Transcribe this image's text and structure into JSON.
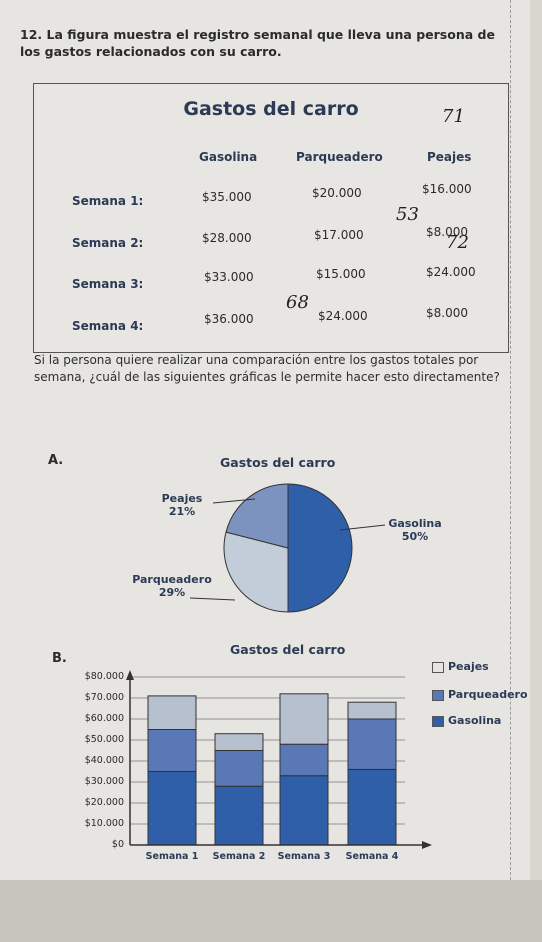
{
  "question": {
    "number": "12.",
    "text": "La figura muestra el registro semanal que lleva una persona de los gastos relacionados con su carro."
  },
  "table": {
    "title": "Gastos del carro",
    "headers": [
      "Gasolina",
      "Parqueadero",
      "Peajes"
    ],
    "rows": [
      {
        "label": "Semana 1:",
        "values": [
          "$35.000",
          "$20.000",
          "$16.000"
        ]
      },
      {
        "label": "Semana 2:",
        "values": [
          "$28.000",
          "$17.000",
          "$8.000"
        ]
      },
      {
        "label": "Semana 3:",
        "values": [
          "$33.000",
          "$15.000",
          "$24.000"
        ]
      },
      {
        "label": "Semana 4:",
        "values": [
          "$36.000",
          "$24.000",
          "$8.000"
        ]
      }
    ],
    "handwritten": [
      "71",
      "53",
      "72",
      "68"
    ]
  },
  "prompt": "Si la persona quiere realizar una comparación entre los gastos totales por semana, ¿cuál de las siguientes gráficas le permite hacer esto directamente?",
  "optionA": {
    "label": "A.",
    "title": "Gastos del carro",
    "slices": [
      {
        "name": "Gasolina",
        "pct": "50%"
      },
      {
        "name": "Parqueadero",
        "pct": "29%"
      },
      {
        "name": "Peajes",
        "pct": "21%"
      }
    ]
  },
  "optionB": {
    "label": "B.",
    "title": "Gastos del carro",
    "legend": [
      "Peajes",
      "Parqueadero",
      "Gasolina"
    ],
    "yticks": [
      "$80.000",
      "$70.000",
      "$60.000",
      "$50.000",
      "$40.000",
      "$30.000",
      "$20.000",
      "$10.000",
      "$0"
    ],
    "categories": [
      "Semana 1",
      "Semana 2",
      "Semana 3",
      "Semana 4"
    ]
  },
  "chart_data": [
    {
      "type": "pie",
      "title": "Gastos del carro",
      "labels": [
        "Gasolina",
        "Parqueadero",
        "Peajes"
      ],
      "values": [
        50,
        29,
        21
      ],
      "colors": [
        "#2f5fa8",
        "#c3ccd9",
        "#7b93be"
      ]
    },
    {
      "type": "bar",
      "stacked": true,
      "title": "Gastos del carro",
      "categories": [
        "Semana 1",
        "Semana 2",
        "Semana 3",
        "Semana 4"
      ],
      "series": [
        {
          "name": "Gasolina",
          "values": [
            35000,
            28000,
            33000,
            36000
          ],
          "color": "#2f5fa8"
        },
        {
          "name": "Parqueadero",
          "values": [
            20000,
            17000,
            15000,
            24000
          ],
          "color": "#5a78b5"
        },
        {
          "name": "Peajes",
          "values": [
            16000,
            8000,
            24000,
            8000
          ],
          "color": "#b6c0cf"
        }
      ],
      "ylim": [
        0,
        80000
      ],
      "legend_position": "right"
    }
  ]
}
